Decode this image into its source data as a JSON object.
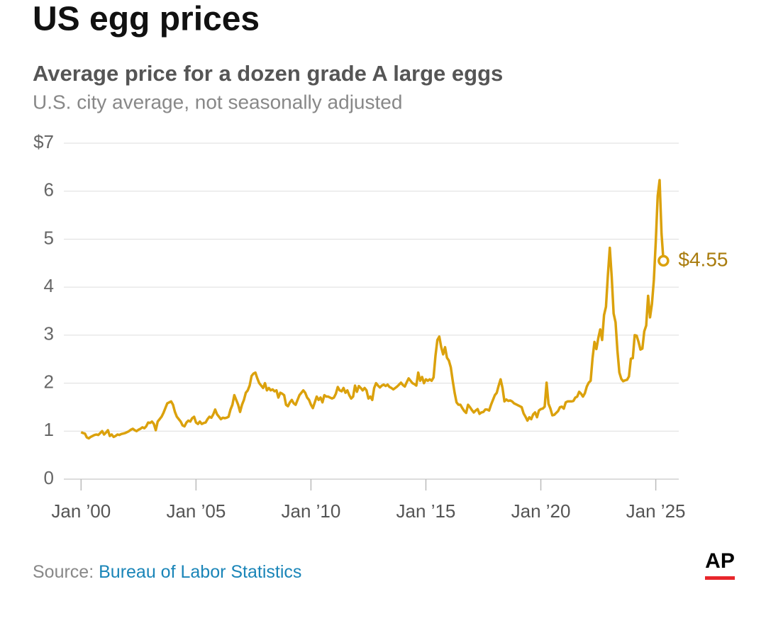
{
  "chart_data": {
    "type": "line",
    "title": "US egg prices",
    "subtitle": "Average price for a dozen grade A large eggs",
    "note": "U.S. city average, not seasonally adjusted",
    "source_label": "Source:",
    "source": "Bureau of Labor Statistics",
    "logo": "AP",
    "color": "#dba10c",
    "label_color": "#a97c0e",
    "grid": true,
    "x": [
      "2000-01",
      "2000-02",
      "2000-03",
      "2000-04",
      "2000-05",
      "2000-06",
      "2000-07",
      "2000-08",
      "2000-09",
      "2000-10",
      "2000-11",
      "2000-12",
      "2001-01",
      "2001-02",
      "2001-03",
      "2001-04",
      "2001-05",
      "2001-06",
      "2001-07",
      "2001-08",
      "2001-09",
      "2001-10",
      "2001-11",
      "2001-12",
      "2002-01",
      "2002-02",
      "2002-03",
      "2002-04",
      "2002-05",
      "2002-06",
      "2002-07",
      "2002-08",
      "2002-09",
      "2002-10",
      "2002-11",
      "2002-12",
      "2003-01",
      "2003-02",
      "2003-03",
      "2003-04",
      "2003-05",
      "2003-06",
      "2003-07",
      "2003-08",
      "2003-09",
      "2003-10",
      "2003-11",
      "2003-12",
      "2004-01",
      "2004-02",
      "2004-03",
      "2004-04",
      "2004-05",
      "2004-06",
      "2004-07",
      "2004-08",
      "2004-09",
      "2004-10",
      "2004-11",
      "2004-12",
      "2005-01",
      "2005-02",
      "2005-03",
      "2005-04",
      "2005-05",
      "2005-06",
      "2005-07",
      "2005-08",
      "2005-09",
      "2005-10",
      "2005-11",
      "2005-12",
      "2006-01",
      "2006-02",
      "2006-03",
      "2006-04",
      "2006-05",
      "2006-06",
      "2006-07",
      "2006-08",
      "2006-09",
      "2006-10",
      "2006-11",
      "2006-12",
      "2007-01",
      "2007-02",
      "2007-03",
      "2007-04",
      "2007-05",
      "2007-06",
      "2007-07",
      "2007-08",
      "2007-09",
      "2007-10",
      "2007-11",
      "2007-12",
      "2008-01",
      "2008-02",
      "2008-03",
      "2008-04",
      "2008-05",
      "2008-06",
      "2008-07",
      "2008-08",
      "2008-09",
      "2008-10",
      "2008-11",
      "2008-12",
      "2009-01",
      "2009-02",
      "2009-03",
      "2009-04",
      "2009-05",
      "2009-06",
      "2009-07",
      "2009-08",
      "2009-09",
      "2009-10",
      "2009-11",
      "2009-12",
      "2010-01",
      "2010-02",
      "2010-03",
      "2010-04",
      "2010-05",
      "2010-06",
      "2010-07",
      "2010-08",
      "2010-09",
      "2010-10",
      "2010-11",
      "2010-12",
      "2011-01",
      "2011-02",
      "2011-03",
      "2011-04",
      "2011-05",
      "2011-06",
      "2011-07",
      "2011-08",
      "2011-09",
      "2011-10",
      "2011-11",
      "2011-12",
      "2012-01",
      "2012-02",
      "2012-03",
      "2012-04",
      "2012-05",
      "2012-06",
      "2012-07",
      "2012-08",
      "2012-09",
      "2012-10",
      "2012-11",
      "2012-12",
      "2013-01",
      "2013-02",
      "2013-03",
      "2013-04",
      "2013-05",
      "2013-06",
      "2013-07",
      "2013-08",
      "2013-09",
      "2013-10",
      "2013-11",
      "2013-12",
      "2014-01",
      "2014-02",
      "2014-03",
      "2014-04",
      "2014-05",
      "2014-06",
      "2014-07",
      "2014-08",
      "2014-09",
      "2014-10",
      "2014-11",
      "2014-12",
      "2015-01",
      "2015-02",
      "2015-03",
      "2015-04",
      "2015-05",
      "2015-06",
      "2015-07",
      "2015-08",
      "2015-09",
      "2015-10",
      "2015-11",
      "2015-12",
      "2016-01",
      "2016-02",
      "2016-03",
      "2016-04",
      "2016-05",
      "2016-06",
      "2016-07",
      "2016-08",
      "2016-09",
      "2016-10",
      "2016-11",
      "2016-12",
      "2017-01",
      "2017-02",
      "2017-03",
      "2017-04",
      "2017-05",
      "2017-06",
      "2017-07",
      "2017-08",
      "2017-09",
      "2017-10",
      "2017-11",
      "2017-12",
      "2018-01",
      "2018-02",
      "2018-03",
      "2018-04",
      "2018-05",
      "2018-06",
      "2018-07",
      "2018-08",
      "2018-09",
      "2018-10",
      "2018-11",
      "2018-12",
      "2019-01",
      "2019-02",
      "2019-03",
      "2019-04",
      "2019-05",
      "2019-06",
      "2019-07",
      "2019-08",
      "2019-09",
      "2019-10",
      "2019-11",
      "2019-12",
      "2020-01",
      "2020-02",
      "2020-03",
      "2020-04",
      "2020-05",
      "2020-06",
      "2020-07",
      "2020-08",
      "2020-09",
      "2020-10",
      "2020-11",
      "2020-12",
      "2021-01",
      "2021-02",
      "2021-03",
      "2021-04",
      "2021-05",
      "2021-06",
      "2021-07",
      "2021-08",
      "2021-09",
      "2021-10",
      "2021-11",
      "2021-12",
      "2022-01",
      "2022-02",
      "2022-03",
      "2022-04",
      "2022-05",
      "2022-06",
      "2022-07",
      "2022-08",
      "2022-09",
      "2022-10",
      "2022-11",
      "2022-12",
      "2023-01",
      "2023-02",
      "2023-03",
      "2023-04",
      "2023-05",
      "2023-06",
      "2023-07",
      "2023-08",
      "2023-09",
      "2023-10",
      "2023-11",
      "2023-12",
      "2024-01",
      "2024-02",
      "2024-03",
      "2024-04",
      "2024-05",
      "2024-06",
      "2024-07",
      "2024-08",
      "2024-09",
      "2024-10",
      "2024-11",
      "2024-12",
      "2025-01",
      "2025-02",
      "2025-03",
      "2025-04",
      "2025-05"
    ],
    "values": [
      0.98,
      0.96,
      0.95,
      0.87,
      0.85,
      0.88,
      0.9,
      0.92,
      0.93,
      0.92,
      0.96,
      1.0,
      0.93,
      0.97,
      1.02,
      0.9,
      0.93,
      0.88,
      0.9,
      0.93,
      0.92,
      0.94,
      0.95,
      0.96,
      0.98,
      1.0,
      1.03,
      1.05,
      1.02,
      1.0,
      1.03,
      1.05,
      1.08,
      1.06,
      1.1,
      1.18,
      1.17,
      1.2,
      1.15,
      1.02,
      1.2,
      1.25,
      1.3,
      1.38,
      1.48,
      1.58,
      1.6,
      1.62,
      1.55,
      1.4,
      1.3,
      1.25,
      1.2,
      1.12,
      1.1,
      1.18,
      1.22,
      1.2,
      1.27,
      1.3,
      1.18,
      1.15,
      1.2,
      1.15,
      1.17,
      1.18,
      1.25,
      1.3,
      1.28,
      1.35,
      1.45,
      1.35,
      1.3,
      1.25,
      1.28,
      1.27,
      1.28,
      1.3,
      1.45,
      1.55,
      1.75,
      1.65,
      1.55,
      1.4,
      1.55,
      1.65,
      1.8,
      1.85,
      1.95,
      2.15,
      2.2,
      2.22,
      2.1,
      2.0,
      1.95,
      1.9,
      2.0,
      1.85,
      1.9,
      1.85,
      1.87,
      1.83,
      1.85,
      1.7,
      1.8,
      1.78,
      1.75,
      1.55,
      1.52,
      1.6,
      1.65,
      1.58,
      1.55,
      1.65,
      1.75,
      1.8,
      1.85,
      1.8,
      1.7,
      1.65,
      1.55,
      1.48,
      1.6,
      1.72,
      1.65,
      1.7,
      1.6,
      1.75,
      1.72,
      1.72,
      1.7,
      1.68,
      1.7,
      1.78,
      1.92,
      1.85,
      1.83,
      1.9,
      1.8,
      1.85,
      1.75,
      1.68,
      1.72,
      1.95,
      1.82,
      1.94,
      1.9,
      1.85,
      1.9,
      1.85,
      1.68,
      1.72,
      1.65,
      1.9,
      2.0,
      1.95,
      1.91,
      1.95,
      1.97,
      1.94,
      1.97,
      1.92,
      1.9,
      1.87,
      1.9,
      1.93,
      1.97,
      2.01,
      1.96,
      1.93,
      2.02,
      2.1,
      2.05,
      2.0,
      1.98,
      1.95,
      2.22,
      2.05,
      2.13,
      2.0,
      2.08,
      2.05,
      2.08,
      2.05,
      2.12,
      2.57,
      2.9,
      2.97,
      2.75,
      2.6,
      2.75,
      2.53,
      2.47,
      2.33,
      2.05,
      1.8,
      1.6,
      1.55,
      1.55,
      1.48,
      1.42,
      1.38,
      1.55,
      1.5,
      1.44,
      1.39,
      1.43,
      1.46,
      1.36,
      1.39,
      1.4,
      1.45,
      1.45,
      1.43,
      1.55,
      1.65,
      1.75,
      1.8,
      1.95,
      2.08,
      1.9,
      1.62,
      1.66,
      1.63,
      1.64,
      1.62,
      1.58,
      1.56,
      1.54,
      1.52,
      1.5,
      1.37,
      1.3,
      1.22,
      1.29,
      1.25,
      1.35,
      1.39,
      1.29,
      1.43,
      1.46,
      1.47,
      1.51,
      2.01,
      1.57,
      1.47,
      1.33,
      1.34,
      1.38,
      1.42,
      1.5,
      1.51,
      1.47,
      1.6,
      1.62,
      1.62,
      1.62,
      1.63,
      1.7,
      1.72,
      1.82,
      1.78,
      1.72,
      1.79,
      1.93,
      2.01,
      2.05,
      2.52,
      2.86,
      2.71,
      2.94,
      3.12,
      2.9,
      3.42,
      3.59,
      4.25,
      4.82,
      4.21,
      3.45,
      3.27,
      2.67,
      2.22,
      2.09,
      2.04,
      2.06,
      2.07,
      2.14,
      2.51,
      2.52,
      3.0,
      2.99,
      2.86,
      2.7,
      2.72,
      3.08,
      3.2,
      3.82,
      3.37,
      3.65,
      4.15,
      4.95,
      5.9,
      6.23,
      5.12,
      4.55
    ],
    "annotations": [
      {
        "x": "2025-05",
        "value": 4.55,
        "label": "$4.55"
      }
    ],
    "xlim": [
      "1999-04",
      "2026-01"
    ],
    "xticks": [
      {
        "value": "2000-01",
        "label": "Jan ’00"
      },
      {
        "value": "2005-01",
        "label": "Jan ’05"
      },
      {
        "value": "2010-01",
        "label": "Jan ’10"
      },
      {
        "value": "2015-01",
        "label": "Jan ’15"
      },
      {
        "value": "2020-01",
        "label": "Jan ’20"
      },
      {
        "value": "2025-01",
        "label": "Jan ’25"
      }
    ],
    "ylim": [
      0,
      7
    ],
    "yticks": [
      0,
      1,
      2,
      3,
      4,
      5,
      6,
      {
        "value": 7,
        "label": "$7"
      }
    ]
  }
}
